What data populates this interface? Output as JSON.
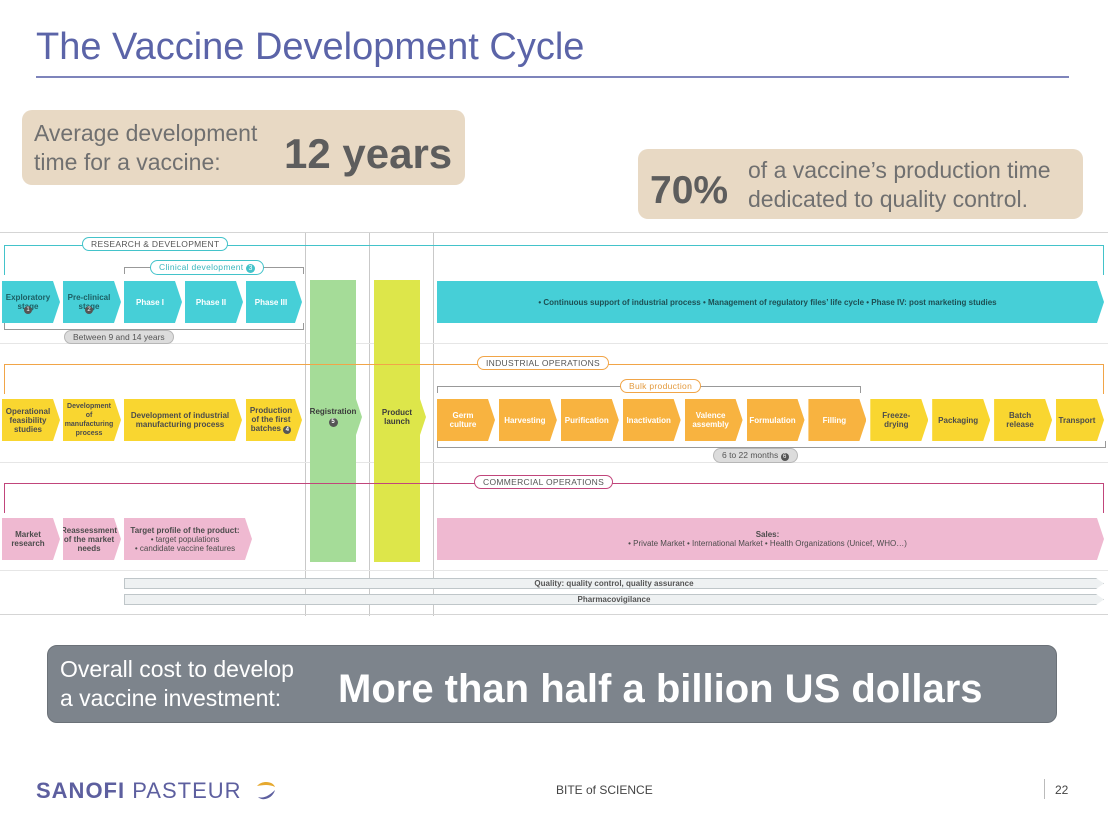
{
  "title": "The Vaccine Development Cycle",
  "dev_time": {
    "label_1": "Average development",
    "label_2": "time for a vaccine:",
    "value": "12 years"
  },
  "qc": {
    "value": "70%",
    "label_1": "of a vaccine’s production time",
    "label_2": "dedicated to quality control."
  },
  "cost": {
    "label_1": "Overall cost to develop",
    "label_2": "a vaccine investment:",
    "value": "More than half a billion US dollars"
  },
  "rd": {
    "section": "RESEARCH & DEVELOPMENT",
    "clinical": "Clinical development",
    "clinical_num": "3",
    "steps": [
      "Exploratory stage",
      "Pre-clinical stage",
      "Phase I",
      "Phase II",
      "Phase III"
    ],
    "step_nums": [
      "1",
      "2"
    ],
    "duration": "Between 9 and 14 years",
    "support": "• Continuous support of industrial process • Management of regulatory files’ life cycle • Phase IV: post marketing studies"
  },
  "registration": {
    "label": "Registration",
    "num": "5"
  },
  "launch": {
    "label": "Product launch"
  },
  "industrial": {
    "section": "INDUSTRIAL OPERATIONS",
    "bulk": "Bulk production",
    "steps": [
      "Operational feasibility studies",
      "Development of manufacturing process",
      "Development of industrial manufacturing process",
      "Production of the first batches"
    ],
    "batch_num": "4",
    "ops": [
      "Germ culture",
      "Harvesting",
      "Purification",
      "Inactivation",
      "Valence assembly",
      "Formulation",
      "Filling",
      "Freeze-drying",
      "Packaging",
      "Batch release",
      "Transport"
    ],
    "duration": "6 to 22 months",
    "duration_num": "6"
  },
  "commercial": {
    "section": "COMMERCIAL OPERATIONS",
    "steps": [
      "Market research",
      "Reassessment of the market needs"
    ],
    "target_title": "Target profile of the product:",
    "target_items": [
      "• target populations",
      "• candidate vaccine features"
    ],
    "sales_title": "Sales:",
    "sales_text": "• Private Market • International Market • Health Organizations (Unicef, WHO…)"
  },
  "quality": "Quality: quality control, quality assurance",
  "pharma": "Pharmacovigilance",
  "footer": {
    "brand_1": "SANOFI",
    "brand_2": " PASTEUR",
    "center": "BITE of SCIENCE",
    "page": "22"
  },
  "colors": {
    "teal": "#46cfd7",
    "yellow": "#f9d630",
    "orange": "#f8b340",
    "pink": "#efb9d1",
    "green": "#a5dc98",
    "lime": "#dde64a",
    "title": "#5b64a8"
  }
}
